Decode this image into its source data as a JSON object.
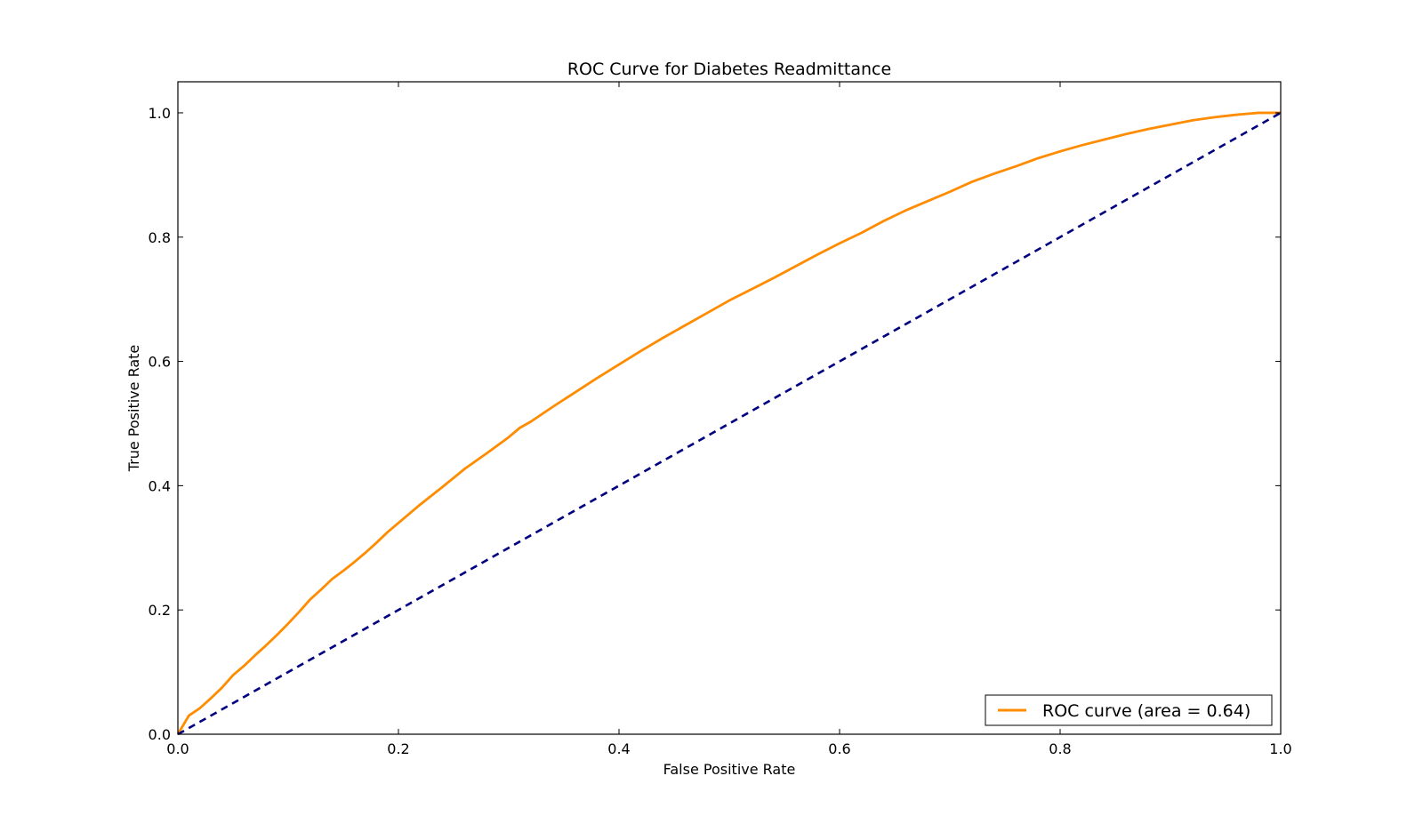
{
  "chart_data": {
    "type": "line",
    "title": "ROC Curve for Diabetes Readmittance",
    "xlabel": "False Positive Rate",
    "ylabel": "True Positive Rate",
    "xlim": [
      0.0,
      1.0
    ],
    "ylim": [
      0.0,
      1.05
    ],
    "x_ticks": [
      "0.0",
      "0.2",
      "0.4",
      "0.6",
      "0.8",
      "1.0"
    ],
    "y_ticks": [
      "0.0",
      "0.2",
      "0.4",
      "0.6",
      "0.8",
      "1.0"
    ],
    "grid": false,
    "legend_position": "lower-right",
    "series": [
      {
        "name": "ROC curve (area = 0.64)",
        "color": "#ff8c00",
        "style": "solid",
        "x": [
          0.0,
          0.005,
          0.01,
          0.02,
          0.03,
          0.04,
          0.05,
          0.06,
          0.07,
          0.08,
          0.09,
          0.1,
          0.11,
          0.12,
          0.13,
          0.14,
          0.15,
          0.16,
          0.17,
          0.18,
          0.19,
          0.2,
          0.22,
          0.24,
          0.26,
          0.28,
          0.3,
          0.31,
          0.32,
          0.33,
          0.34,
          0.36,
          0.38,
          0.4,
          0.42,
          0.44,
          0.46,
          0.48,
          0.5,
          0.52,
          0.54,
          0.56,
          0.58,
          0.6,
          0.62,
          0.64,
          0.66,
          0.68,
          0.7,
          0.72,
          0.74,
          0.76,
          0.78,
          0.8,
          0.82,
          0.84,
          0.86,
          0.88,
          0.9,
          0.92,
          0.94,
          0.96,
          0.98,
          1.0
        ],
        "y": [
          0.0,
          0.015,
          0.03,
          0.042,
          0.058,
          0.075,
          0.095,
          0.11,
          0.127,
          0.143,
          0.16,
          0.178,
          0.197,
          0.217,
          0.233,
          0.25,
          0.263,
          0.277,
          0.292,
          0.308,
          0.325,
          0.34,
          0.37,
          0.398,
          0.427,
          0.452,
          0.478,
          0.493,
          0.503,
          0.515,
          0.527,
          0.55,
          0.573,
          0.595,
          0.617,
          0.638,
          0.658,
          0.678,
          0.698,
          0.716,
          0.734,
          0.753,
          0.772,
          0.79,
          0.807,
          0.826,
          0.843,
          0.858,
          0.873,
          0.889,
          0.902,
          0.914,
          0.927,
          0.938,
          0.948,
          0.957,
          0.966,
          0.974,
          0.981,
          0.988,
          0.993,
          0.997,
          1.0,
          1.0
        ]
      },
      {
        "color": "#000080",
        "style": "dashed",
        "x": [
          0.0,
          1.0
        ],
        "y": [
          0.0,
          1.0
        ]
      }
    ]
  }
}
